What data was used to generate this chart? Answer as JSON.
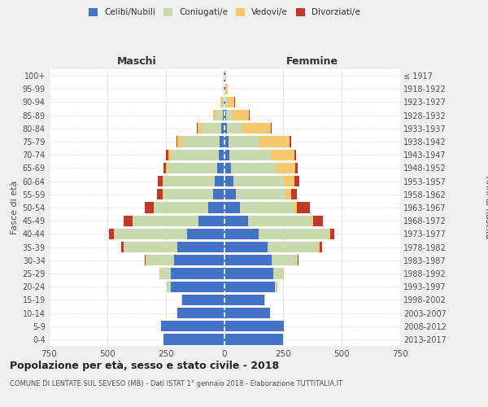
{
  "age_groups": [
    "0-4",
    "5-9",
    "10-14",
    "15-19",
    "20-24",
    "25-29",
    "30-34",
    "35-39",
    "40-44",
    "45-49",
    "50-54",
    "55-59",
    "60-64",
    "65-69",
    "70-74",
    "75-79",
    "80-84",
    "85-89",
    "90-94",
    "95-99",
    "100+"
  ],
  "birth_years": [
    "2013-2017",
    "2008-2012",
    "2003-2007",
    "1998-2002",
    "1993-1997",
    "1988-1992",
    "1983-1987",
    "1978-1982",
    "1973-1977",
    "1968-1972",
    "1963-1967",
    "1958-1962",
    "1953-1957",
    "1948-1952",
    "1943-1947",
    "1938-1942",
    "1933-1937",
    "1928-1932",
    "1923-1927",
    "1918-1922",
    "≤ 1917"
  ],
  "maschi": {
    "celibi": [
      260,
      270,
      200,
      180,
      230,
      230,
      215,
      200,
      160,
      110,
      70,
      50,
      40,
      30,
      25,
      20,
      15,
      8,
      4,
      2,
      2
    ],
    "coniugati": [
      0,
      0,
      0,
      5,
      15,
      45,
      120,
      230,
      310,
      280,
      230,
      210,
      220,
      210,
      200,
      160,
      80,
      30,
      8,
      3,
      2
    ],
    "vedovi": [
      0,
      0,
      0,
      0,
      0,
      2,
      2,
      2,
      2,
      2,
      2,
      3,
      5,
      10,
      15,
      20,
      20,
      10,
      5,
      0,
      0
    ],
    "divorziati": [
      0,
      0,
      0,
      0,
      0,
      2,
      5,
      10,
      20,
      40,
      40,
      25,
      20,
      12,
      10,
      5,
      3,
      2,
      0,
      0,
      0
    ]
  },
  "femmine": {
    "nubili": [
      250,
      255,
      195,
      170,
      215,
      210,
      200,
      185,
      145,
      100,
      65,
      50,
      38,
      28,
      22,
      18,
      12,
      8,
      4,
      2,
      2
    ],
    "coniugate": [
      0,
      0,
      0,
      4,
      12,
      40,
      110,
      215,
      300,
      270,
      230,
      210,
      215,
      195,
      175,
      130,
      65,
      25,
      8,
      3,
      2
    ],
    "vedove": [
      0,
      0,
      0,
      0,
      0,
      2,
      2,
      5,
      5,
      10,
      15,
      25,
      45,
      80,
      100,
      130,
      120,
      70,
      30,
      8,
      3
    ],
    "divorziate": [
      0,
      0,
      0,
      0,
      0,
      2,
      5,
      10,
      20,
      40,
      55,
      25,
      20,
      10,
      10,
      5,
      5,
      3,
      2,
      0,
      0
    ]
  },
  "colors": {
    "celibi_nubili": "#4472C4",
    "coniugati": "#c8d9b0",
    "vedovi": "#f5c96a",
    "divorziati": "#c0392b"
  },
  "title": "Popolazione per età, sesso e stato civile - 2018",
  "subtitle": "COMUNE DI LENTATE SUL SEVESO (MB) - Dati ISTAT 1° gennaio 2018 - Elaborazione TUTTITALIA.IT",
  "xlabel_left": "Maschi",
  "xlabel_right": "Femmine",
  "ylabel_left": "Fasce di età",
  "ylabel_right": "Anni di nascita",
  "xlim": 750,
  "background_color": "#f0f0f0",
  "bar_background": "#ffffff",
  "legend_labels": [
    "Celibi/Nubili",
    "Coniugati/e",
    "Vedovi/e",
    "Divorziati/e"
  ]
}
